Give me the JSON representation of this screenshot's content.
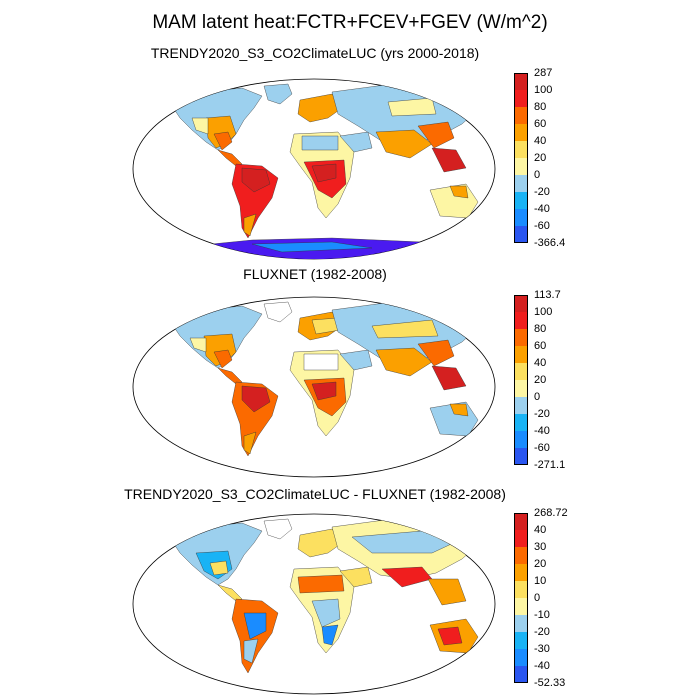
{
  "figure": {
    "title": "MAM latent heat:FCTR+FCEV+FGEV (W/m^2)"
  },
  "panels": [
    {
      "title": "TRENDY2020_S3_CO2ClimateLUC (yrs 2000-2018)",
      "colorbar": {
        "labels": [
          "287",
          "100",
          "80",
          "60",
          "40",
          "20",
          "0",
          "-20",
          "-40",
          "-60",
          "-366.4"
        ],
        "colors": [
          "#d42020",
          "#f01e1e",
          "#fb6a00",
          "#fba000",
          "#fce060",
          "#fdf6a4",
          "#9cd0ee",
          "#19b3f5",
          "#1a8cff",
          "#2a56f0",
          "#4a1af0"
        ]
      }
    },
    {
      "title": "FLUXNET (1982-2008)",
      "colorbar": {
        "labels": [
          "113.7",
          "100",
          "80",
          "60",
          "40",
          "20",
          "0",
          "-20",
          "-40",
          "-60",
          "-271.1"
        ],
        "colors": [
          "#d42020",
          "#f01e1e",
          "#fb6a00",
          "#fba000",
          "#fce060",
          "#fdf6a4",
          "#9cd0ee",
          "#19b3f5",
          "#1a8cff",
          "#2a56f0",
          "#4a1af0"
        ]
      }
    },
    {
      "title": "TRENDY2020_S3_CO2ClimateLUC - FLUXNET (1982-2008)",
      "colorbar": {
        "labels": [
          "268.72",
          "40",
          "30",
          "20",
          "10",
          "0",
          "-10",
          "-20",
          "-30",
          "-40",
          "-52.33"
        ],
        "colors": [
          "#d42020",
          "#f01e1e",
          "#fb6a00",
          "#fba000",
          "#fce060",
          "#fdf6a4",
          "#9cd0ee",
          "#19b3f5",
          "#1a8cff",
          "#2a56f0",
          "#4a1af0"
        ]
      }
    }
  ]
}
